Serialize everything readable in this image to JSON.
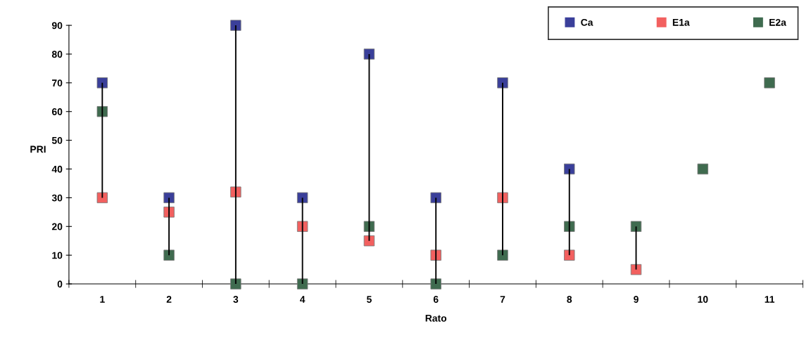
{
  "chart_data": {
    "type": "scatter",
    "xlabel": "Rato",
    "ylabel": "PRI",
    "categories": [
      "1",
      "2",
      "3",
      "4",
      "5",
      "6",
      "7",
      "8",
      "9",
      "10",
      "11"
    ],
    "series": [
      {
        "type": "bar",
        "color": "#000000",
        "base": [
          30,
          10,
          0,
          0,
          15,
          0,
          10,
          10,
          5,
          null,
          null
        ],
        "values": [
          40,
          20,
          90,
          30,
          65,
          30,
          60,
          30,
          15,
          null,
          null
        ]
      },
      {
        "name": "Ca",
        "color": "#3a3f9a",
        "values": [
          70,
          30,
          90,
          30,
          80,
          30,
          70,
          40,
          null,
          null,
          null
        ]
      },
      {
        "name": "E1a",
        "color": "#f2605f",
        "values": [
          30,
          25,
          32,
          20,
          15,
          10,
          30,
          10,
          5,
          null,
          null
        ]
      },
      {
        "name": "E2a",
        "color": "#3f6b4f",
        "values": [
          60,
          10,
          0,
          0,
          20,
          0,
          10,
          20,
          20,
          40,
          70
        ]
      }
    ],
    "ylim": [
      0,
      90
    ],
    "yticks": [
      0,
      10,
      20,
      30,
      40,
      50,
      60,
      70,
      80,
      90
    ],
    "grid": false,
    "legend": "top right",
    "marker": "square"
  }
}
